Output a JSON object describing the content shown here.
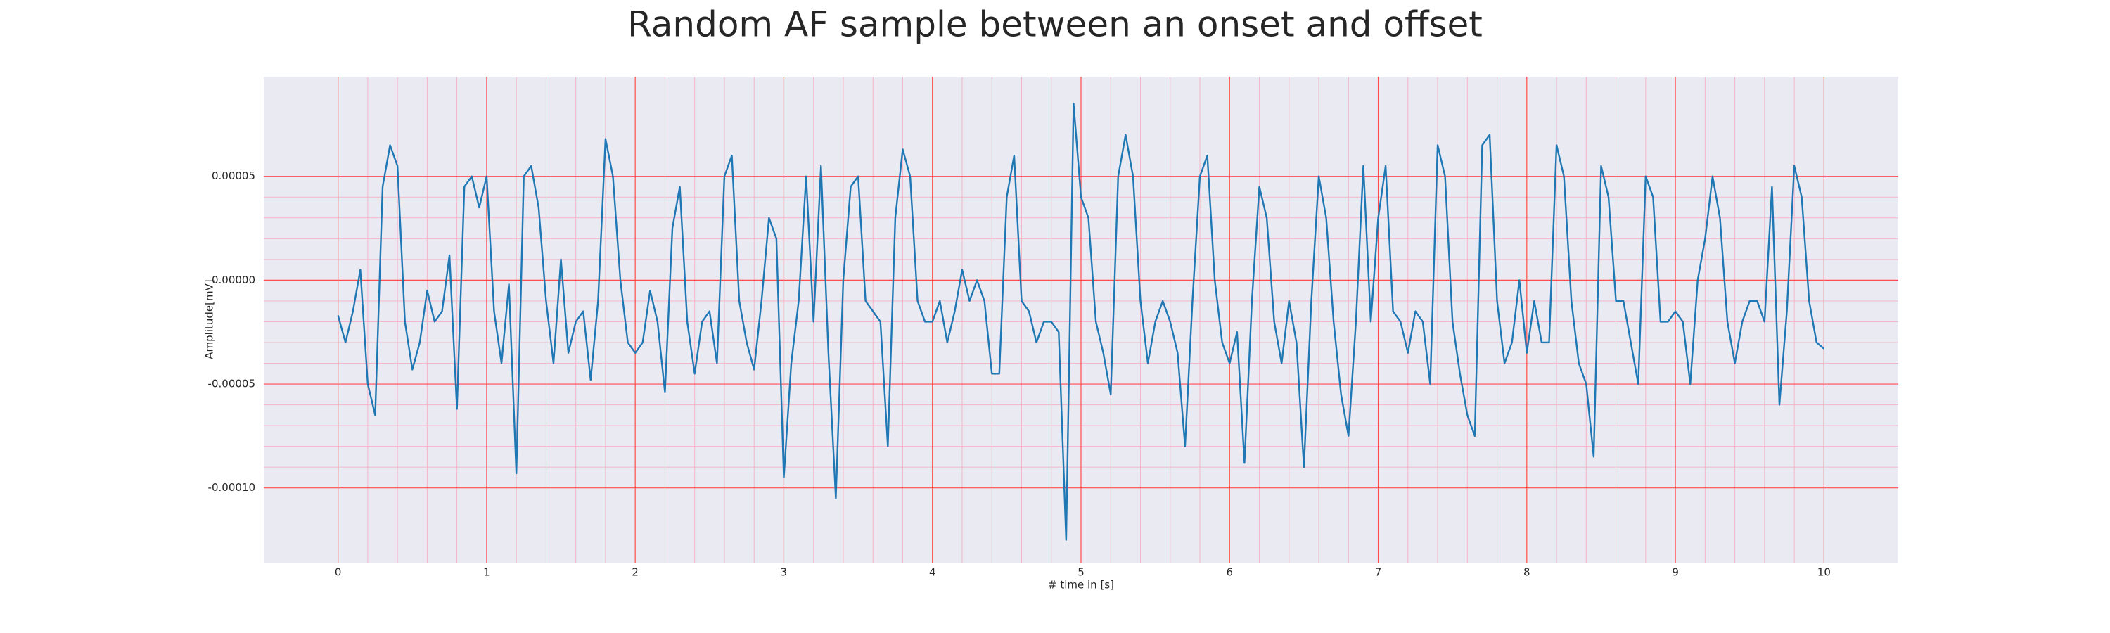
{
  "chart_data": {
    "type": "line",
    "title": "Random AF sample between an onset and offset",
    "xlabel": "# time in [s]",
    "ylabel": "Amplitude[mV]",
    "color": "#1f77b4",
    "grid": true,
    "xlim": [
      -0.5,
      10.5
    ],
    "ylim": [
      -0.000136,
      9.8e-05
    ],
    "xticks": [
      0,
      1,
      2,
      3,
      4,
      5,
      6,
      7,
      8,
      9,
      10
    ],
    "yticks": [
      {
        "value": -0.0001,
        "label": "-0.00010"
      },
      -5e-05,
      {
        "value": 0,
        "label": "0.00000"
      },
      5e-05
    ],
    "x": [
      0,
      0.05,
      0.1,
      0.15,
      0.2,
      0.25,
      0.3,
      0.35,
      0.4,
      0.45,
      0.5,
      0.55,
      0.6,
      0.65,
      0.7,
      0.75,
      0.8,
      0.85,
      0.9,
      0.95,
      1,
      1.05,
      1.1,
      1.15,
      1.2,
      1.25,
      1.3,
      1.35,
      1.4,
      1.45,
      1.5,
      1.55,
      1.6,
      1.65,
      1.7,
      1.75,
      1.8,
      1.85,
      1.9,
      1.95,
      2,
      2.05,
      2.1,
      2.15,
      2.2,
      2.25,
      2.3,
      2.35,
      2.4,
      2.45,
      2.5,
      2.55,
      2.6,
      2.65,
      2.7,
      2.75,
      2.8,
      2.85,
      2.9,
      2.95,
      3,
      3.05,
      3.1,
      3.15,
      3.2,
      3.25,
      3.3,
      3.35,
      3.4,
      3.45,
      3.5,
      3.55,
      3.6,
      3.65,
      3.7,
      3.75,
      3.8,
      3.85,
      3.9,
      3.95,
      4,
      4.05,
      4.1,
      4.15,
      4.2,
      4.25,
      4.3,
      4.35,
      4.4,
      4.45,
      4.5,
      4.55,
      4.6,
      4.65,
      4.7,
      4.75,
      4.8,
      4.85,
      4.9,
      4.95,
      5,
      5.05,
      5.1,
      5.15,
      5.2,
      5.25,
      5.3,
      5.35,
      5.4,
      5.45,
      5.5,
      5.55,
      5.6,
      5.65,
      5.7,
      5.75,
      5.8,
      5.85,
      5.9,
      5.95,
      6,
      6.05,
      6.1,
      6.15,
      6.2,
      6.25,
      6.3,
      6.35,
      6.4,
      6.45,
      6.5,
      6.55,
      6.6,
      6.65,
      6.7,
      6.75,
      6.8,
      6.85,
      6.9,
      6.95,
      7,
      7.05,
      7.1,
      7.15,
      7.2,
      7.25,
      7.3,
      7.35,
      7.4,
      7.45,
      7.5,
      7.55,
      7.6,
      7.65,
      7.7,
      7.75,
      7.8,
      7.85,
      7.9,
      7.95,
      8,
      8.05,
      8.1,
      8.15,
      8.2,
      8.25,
      8.3,
      8.35,
      8.4,
      8.45,
      8.5,
      8.55,
      8.6,
      8.65,
      8.7,
      8.75,
      8.8,
      8.85,
      8.9,
      8.95,
      9,
      9.05,
      9.1,
      9.15,
      9.2,
      9.25,
      9.3,
      9.35,
      9.4,
      9.45,
      9.5,
      9.55,
      9.6,
      9.65,
      9.7,
      9.75,
      9.8,
      9.85,
      9.9,
      9.95,
      10
    ],
    "values": [
      -1.7e-05,
      -3e-05,
      -1.5e-05,
      5e-06,
      -5e-05,
      -6.5e-05,
      4.5e-05,
      6.5e-05,
      5.5e-05,
      -2e-05,
      -4.3e-05,
      -3e-05,
      -5e-06,
      -2e-05,
      -1.5e-05,
      1.2e-05,
      -6.2e-05,
      4.5e-05,
      5e-05,
      3.5e-05,
      5e-05,
      -1.5e-05,
      -4e-05,
      -2e-06,
      -9.3e-05,
      5e-05,
      5.5e-05,
      3.5e-05,
      -1e-05,
      -4e-05,
      1e-05,
      -3.5e-05,
      -2e-05,
      -1.5e-05,
      -4.8e-05,
      -1e-05,
      6.8e-05,
      5e-05,
      0,
      -3e-05,
      -3.5e-05,
      -3e-05,
      -5e-06,
      -2e-05,
      -5.4e-05,
      2.5e-05,
      4.5e-05,
      -2e-05,
      -4.5e-05,
      -2e-05,
      -1.5e-05,
      -4e-05,
      5e-05,
      6e-05,
      -1e-05,
      -3e-05,
      -4.3e-05,
      -1e-05,
      3e-05,
      2e-05,
      -9.5e-05,
      -4e-05,
      -1e-05,
      5e-05,
      -2e-05,
      5.5e-05,
      -3.5e-05,
      -0.000105,
      0,
      4.5e-05,
      5e-05,
      -1e-05,
      -1.5e-05,
      -2e-05,
      -8e-05,
      3e-05,
      6.3e-05,
      5e-05,
      -1e-05,
      -2e-05,
      -2e-05,
      -1e-05,
      -3e-05,
      -1.5e-05,
      5e-06,
      -1e-05,
      0,
      -1e-05,
      -4.5e-05,
      -4.5e-05,
      4e-05,
      6e-05,
      -1e-05,
      -1.5e-05,
      -3e-05,
      -2e-05,
      -2e-05,
      -2.5e-05,
      -0.000125,
      8.5e-05,
      4e-05,
      3e-05,
      -2e-05,
      -3.5e-05,
      -5.5e-05,
      5e-05,
      7e-05,
      5e-05,
      -1e-05,
      -4e-05,
      -2e-05,
      -1e-05,
      -2e-05,
      -3.5e-05,
      -8e-05,
      -1e-05,
      5e-05,
      6e-05,
      0,
      -3e-05,
      -4e-05,
      -2.5e-05,
      -8.8e-05,
      -1e-05,
      4.5e-05,
      3e-05,
      -2e-05,
      -4e-05,
      -1e-05,
      -3e-05,
      -9e-05,
      -1e-05,
      5e-05,
      3e-05,
      -2e-05,
      -5.5e-05,
      -7.5e-05,
      -2e-05,
      5.5e-05,
      -2e-05,
      3e-05,
      5.5e-05,
      -1.5e-05,
      -2e-05,
      -3.5e-05,
      -1.5e-05,
      -2e-05,
      -5e-05,
      6.5e-05,
      5e-05,
      -2e-05,
      -4.5e-05,
      -6.5e-05,
      -7.5e-05,
      6.5e-05,
      7e-05,
      -1e-05,
      -4e-05,
      -3e-05,
      0,
      -3.5e-05,
      -1e-05,
      -3e-05,
      -3e-05,
      6.5e-05,
      5e-05,
      -1e-05,
      -4e-05,
      -5e-05,
      -8.5e-05,
      5.5e-05,
      4e-05,
      -1e-05,
      -1e-05,
      -3e-05,
      -5e-05,
      5e-05,
      4e-05,
      -2e-05,
      -2e-05,
      -1.5e-05,
      -2e-05,
      -5e-05,
      0,
      2e-05,
      5e-05,
      3e-05,
      -2e-05,
      -4e-05,
      -2e-05,
      -1e-05,
      -1e-05,
      -2e-05,
      4.5e-05,
      -6e-05,
      -1.5e-05,
      5.5e-05,
      4e-05,
      -1e-05,
      -3e-05,
      -3.3e-05
    ]
  }
}
